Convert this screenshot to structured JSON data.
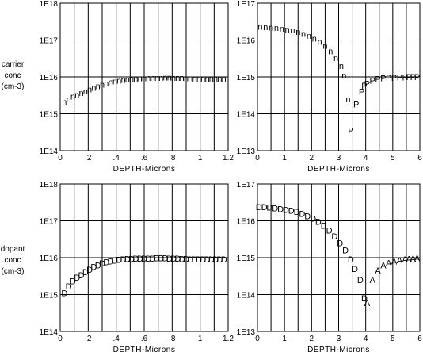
{
  "side_labels": {
    "top": [
      "carrier",
      "conc",
      "(cm-3)"
    ],
    "bottom": [
      "dopant",
      "conc",
      "(cm-3)"
    ]
  },
  "chart_data": [
    {
      "type": "scatter",
      "xlabel": "DEPTH-Microns",
      "ylabel": "carrier conc (cm-3)",
      "xlim": [
        0,
        1.2
      ],
      "ylim_log10": [
        14,
        18
      ],
      "x_ticks": [
        "0",
        ".2",
        ".4",
        ".6",
        ".8",
        "1",
        "1.2"
      ],
      "y_ticks": [
        "1E14",
        "1E15",
        "1E16",
        "1E17",
        "1E18"
      ],
      "grid": true,
      "series": [
        {
          "marker": "n",
          "points": [
            [
              0.03,
              2100000000000000.0
            ],
            [
              0.06,
              2500000000000000.0
            ],
            [
              0.09,
              3000000000000000.0
            ],
            [
              0.12,
              3300000000000000.0
            ],
            [
              0.15,
              3700000000000000.0
            ],
            [
              0.18,
              4100000000000000.0
            ],
            [
              0.21,
              4600000000000000.0
            ],
            [
              0.24,
              5100000000000000.0
            ],
            [
              0.27,
              5600000000000000.0
            ],
            [
              0.3,
              6200000000000000.0
            ],
            [
              0.33,
              6700000000000000.0
            ],
            [
              0.36,
              7200000000000000.0
            ],
            [
              0.39,
              7600000000000000.0
            ],
            [
              0.42,
              8000000000000000.0
            ],
            [
              0.45,
              8400000000000000.0
            ],
            [
              0.48,
              8700000000000000.0
            ],
            [
              0.51,
              8900000000000000.0
            ],
            [
              0.54,
              9100000000000000.0
            ],
            [
              0.57,
              9200000000000000.0
            ],
            [
              0.6,
              9300000000000000.0
            ],
            [
              0.63,
              9400000000000000.0
            ],
            [
              0.66,
              9500000000000000.0
            ],
            [
              0.69,
              9600000000000000.0
            ],
            [
              0.72,
              9600000000000000.0
            ],
            [
              0.75,
              9700000000000000.0
            ],
            [
              0.78,
              9700000000000000.0
            ],
            [
              0.81,
              9600000000000000.0
            ],
            [
              0.84,
              9500000000000000.0
            ],
            [
              0.87,
              9400000000000000.0
            ],
            [
              0.9,
              9300000000000000.0
            ],
            [
              0.93,
              9200000000000000.0
            ],
            [
              0.96,
              9100000000000000.0
            ],
            [
              0.99,
              9000000000000000.0
            ],
            [
              1.02,
              9000000000000000.0
            ],
            [
              1.05,
              9000000000000000.0
            ],
            [
              1.08,
              9000000000000000.0
            ],
            [
              1.11,
              9000000000000000.0
            ],
            [
              1.14,
              9000000000000000.0
            ],
            [
              1.17,
              9000000000000000.0
            ]
          ]
        }
      ]
    },
    {
      "type": "scatter",
      "xlabel": "DEPTH-Microns",
      "xlim": [
        0,
        6
      ],
      "ylim_log10": [
        13,
        17
      ],
      "x_ticks": [
        "0",
        "1",
        "2",
        "3",
        "4",
        "5",
        "6"
      ],
      "y_ticks": [
        "1E13",
        "1E14",
        "1E15",
        "1E16",
        "1E17"
      ],
      "grid": true,
      "series": [
        {
          "marker": "n",
          "points": [
            [
              0.1,
              2.3e+16
            ],
            [
              0.3,
              2.25e+16
            ],
            [
              0.5,
              2.2e+16
            ],
            [
              0.7,
              2.15e+16
            ],
            [
              0.9,
              2.05e+16
            ],
            [
              1.1,
              1.95e+16
            ],
            [
              1.3,
              1.85e+16
            ],
            [
              1.5,
              1.7e+16
            ],
            [
              1.7,
              1.5e+16
            ],
            [
              1.9,
              1.3e+16
            ],
            [
              2.1,
              1.1e+16
            ],
            [
              2.3,
              9000000000000000.0
            ],
            [
              2.5,
              7000000000000000.0
            ],
            [
              2.7,
              5000000000000000.0
            ],
            [
              2.9,
              3300000000000000.0
            ],
            [
              3.1,
              2000000000000000.0
            ],
            [
              3.2,
              1100000000000000.0
            ],
            [
              3.35,
              250000000000000.0
            ]
          ]
        },
        {
          "marker": "P",
          "points": [
            [
              3.45,
              35000000000000.0
            ],
            [
              3.65,
              180000000000000.0
            ],
            [
              3.85,
              400000000000000.0
            ],
            [
              3.95,
              580000000000000.0
            ],
            [
              4.05,
              660000000000000.0
            ],
            [
              4.25,
              800000000000000.0
            ],
            [
              4.45,
              880000000000000.0
            ],
            [
              4.65,
              920000000000000.0
            ],
            [
              4.85,
              950000000000000.0
            ],
            [
              5.05,
              960000000000000.0
            ],
            [
              5.25,
              970000000000000.0
            ],
            [
              5.45,
              980000000000000.0
            ],
            [
              5.6,
              990000000000000.0
            ],
            [
              5.75,
              1000000000000000.0
            ],
            [
              5.9,
              1000000000000000.0
            ]
          ]
        }
      ]
    },
    {
      "type": "scatter",
      "xlabel": "DEPTH-Microns",
      "ylabel": "dopant conc (cm-3)",
      "xlim": [
        0,
        1.2
      ],
      "ylim_log10": [
        14,
        18
      ],
      "x_ticks": [
        "0",
        ".2",
        ".4",
        ".6",
        ".8",
        "1",
        "1.2"
      ],
      "y_ticks": [
        "1E14",
        "1E15",
        "1E16",
        "1E17",
        "1E18"
      ],
      "grid": true,
      "series": [
        {
          "marker": "D",
          "points": [
            [
              0.03,
              1100000000000000.0
            ],
            [
              0.06,
              1700000000000000.0
            ],
            [
              0.09,
              2300000000000000.0
            ],
            [
              0.12,
              2900000000000000.0
            ],
            [
              0.15,
              3400000000000000.0
            ],
            [
              0.18,
              4100000000000000.0
            ],
            [
              0.21,
              4800000000000000.0
            ],
            [
              0.24,
              5600000000000000.0
            ],
            [
              0.27,
              6300000000000000.0
            ],
            [
              0.3,
              7000000000000000.0
            ],
            [
              0.33,
              7600000000000000.0
            ],
            [
              0.36,
              8100000000000000.0
            ],
            [
              0.39,
              8500000000000000.0
            ],
            [
              0.42,
              8800000000000000.0
            ],
            [
              0.45,
              9000000000000000.0
            ],
            [
              0.48,
              9200000000000000.0
            ],
            [
              0.51,
              9300000000000000.0
            ],
            [
              0.54,
              9400000000000000.0
            ],
            [
              0.57,
              9500000000000000.0
            ],
            [
              0.6,
              9500000000000000.0
            ],
            [
              0.63,
              9600000000000000.0
            ],
            [
              0.66,
              9600000000000000.0
            ],
            [
              0.69,
              9700000000000000.0
            ],
            [
              0.72,
              9700000000000000.0
            ],
            [
              0.75,
              9700000000000000.0
            ],
            [
              0.78,
              9600000000000000.0
            ],
            [
              0.81,
              9500000000000000.0
            ],
            [
              0.84,
              9400000000000000.0
            ],
            [
              0.87,
              9300000000000000.0
            ],
            [
              0.9,
              9200000000000000.0
            ],
            [
              0.93,
              9100000000000000.0
            ],
            [
              0.96,
              9000000000000000.0
            ],
            [
              0.99,
              9000000000000000.0
            ],
            [
              1.02,
              9000000000000000.0
            ],
            [
              1.05,
              9000000000000000.0
            ],
            [
              1.08,
              9000000000000000.0
            ],
            [
              1.11,
              9000000000000000.0
            ],
            [
              1.14,
              9000000000000000.0
            ],
            [
              1.17,
              9000000000000000.0
            ]
          ]
        }
      ]
    },
    {
      "type": "scatter",
      "xlabel": "DEPTH-Microns",
      "xlim": [
        0,
        6
      ],
      "ylim_log10": [
        13,
        17
      ],
      "x_ticks": [
        "0",
        "1",
        "2",
        "3",
        "4",
        "5",
        "6"
      ],
      "y_ticks": [
        "1E13",
        "1E14",
        "1E15",
        "1E16",
        "1E17"
      ],
      "grid": true,
      "series": [
        {
          "marker": "D",
          "points": [
            [
              0.05,
              2.4e+16
            ],
            [
              0.25,
              2.35e+16
            ],
            [
              0.45,
              2.3e+16
            ],
            [
              0.65,
              2.2e+16
            ],
            [
              0.85,
              2.1e+16
            ],
            [
              1.05,
              2e+16
            ],
            [
              1.25,
              1.9e+16
            ],
            [
              1.45,
              1.75e+16
            ],
            [
              1.65,
              1.55e+16
            ],
            [
              1.85,
              1.35e+16
            ],
            [
              2.05,
              1.15e+16
            ],
            [
              2.25,
              9500000000000000.0
            ],
            [
              2.45,
              7500000000000000.0
            ],
            [
              2.65,
              5500000000000000.0
            ],
            [
              2.85,
              3800000000000000.0
            ],
            [
              3.05,
              2500000000000000.0
            ],
            [
              3.25,
              1600000000000000.0
            ],
            [
              3.45,
              900000000000000.0
            ],
            [
              3.6,
              500000000000000.0
            ],
            [
              3.8,
              250000000000000.0
            ],
            [
              3.95,
              80000000000000.0
            ]
          ]
        },
        {
          "marker": "A",
          "points": [
            [
              4.05,
              60000000000000.0
            ],
            [
              4.25,
              250000000000000.0
            ],
            [
              4.45,
              450000000000000.0
            ],
            [
              4.65,
              620000000000000.0
            ],
            [
              4.85,
              730000000000000.0
            ],
            [
              5.05,
              800000000000000.0
            ],
            [
              5.25,
              860000000000000.0
            ],
            [
              5.45,
              900000000000000.0
            ],
            [
              5.6,
              930000000000000.0
            ],
            [
              5.75,
              960000000000000.0
            ],
            [
              5.9,
              980000000000000.0
            ]
          ]
        }
      ]
    }
  ]
}
